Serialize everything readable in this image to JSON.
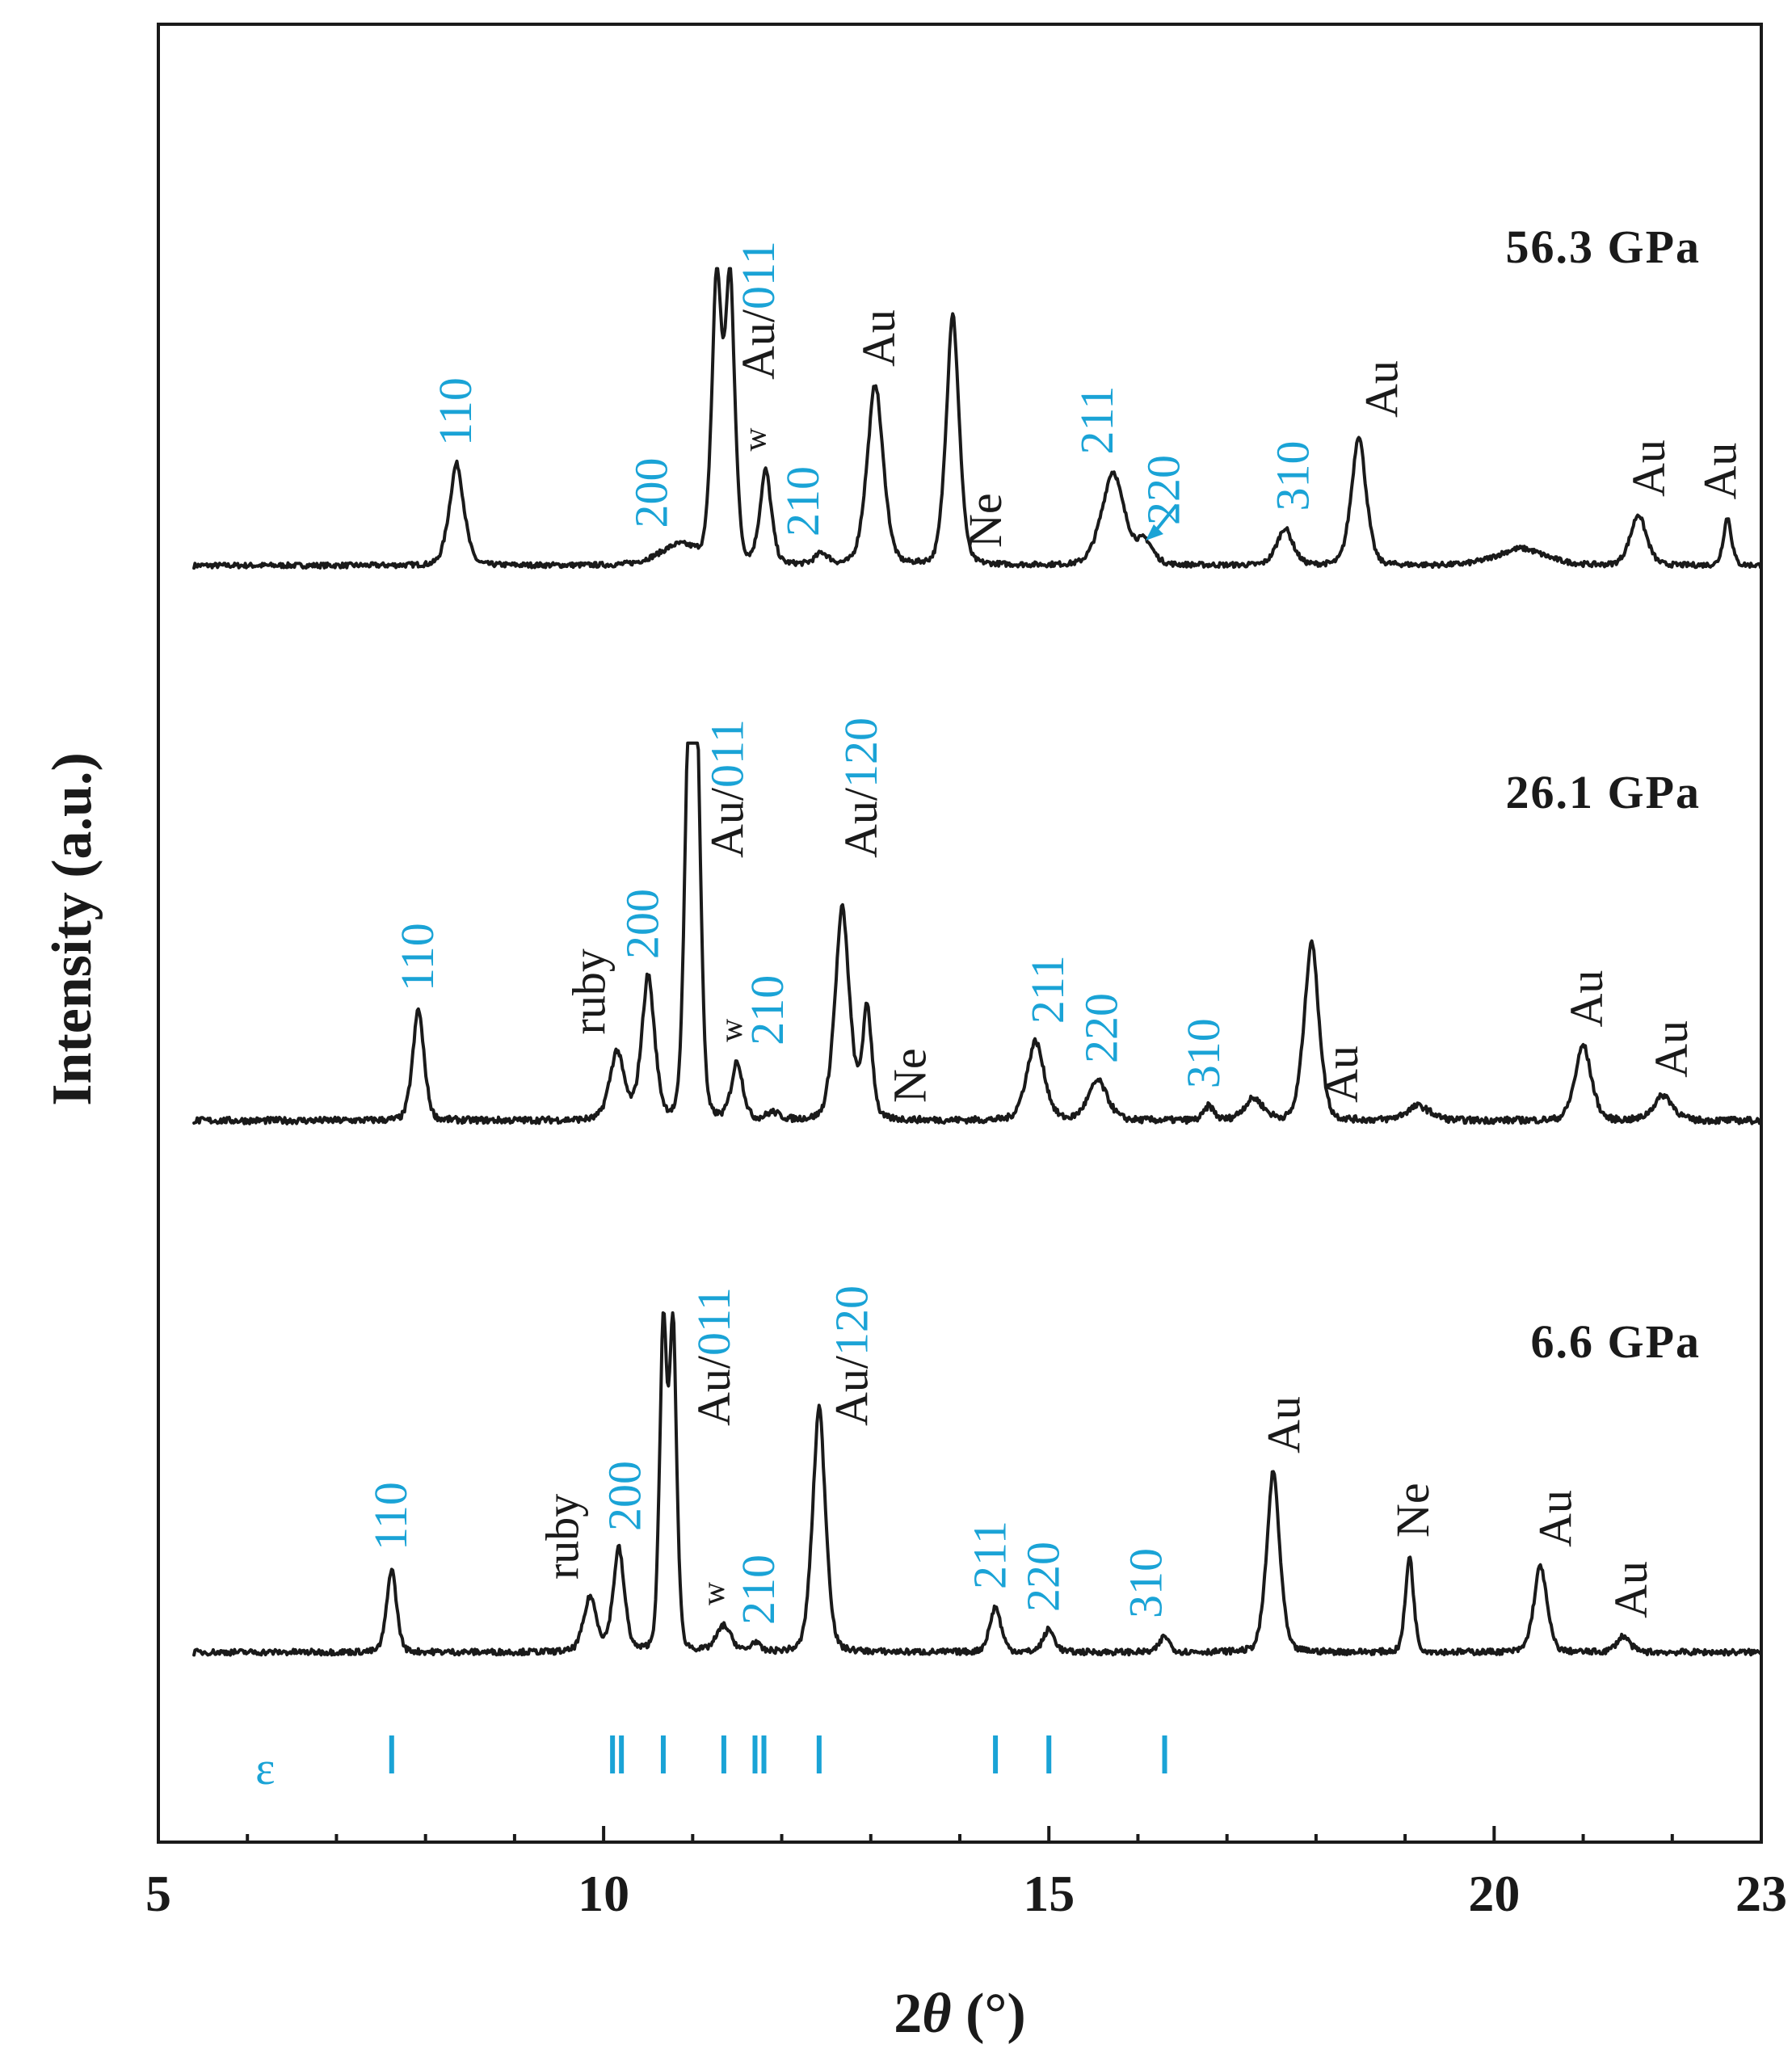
{
  "chart_data": {
    "type": "line",
    "xlabel": "2θ (°)",
    "xlabel_prefix": "2",
    "xlabel_theta": "θ",
    "xlabel_suffix": " (°)",
    "ylabel": "Intensity (a.u.)",
    "xlim": [
      5,
      23
    ],
    "x_ticks": [
      "5",
      "10",
      "15",
      "20",
      "23"
    ],
    "x_tick_values": [
      5,
      10,
      15,
      20,
      23
    ],
    "grid": false,
    "colors": {
      "trace": "#1a1a1a",
      "phase_index": "#1aa3d6",
      "impurity": "#1a1a1a"
    },
    "series": [
      {
        "name": "56.3 GPa",
        "level": 0,
        "peaks": [
          {
            "x": 8.35,
            "h": 0.36,
            "w": 0.09
          },
          {
            "x": 10.85,
            "h": 0.07,
            "w": 0.25
          },
          {
            "x": 11.27,
            "h": 1.0,
            "w": 0.06
          },
          {
            "x": 11.42,
            "h": 1.0,
            "w": 0.06
          },
          {
            "x": 11.82,
            "h": 0.33,
            "w": 0.07
          },
          {
            "x": 12.45,
            "h": 0.04,
            "w": 0.08
          },
          {
            "x": 13.05,
            "h": 0.64,
            "w": 0.1
          },
          {
            "x": 13.92,
            "h": 0.89,
            "w": 0.08
          },
          {
            "x": 15.72,
            "h": 0.33,
            "w": 0.14
          },
          {
            "x": 16.08,
            "h": 0.08,
            "w": 0.1
          },
          {
            "x": 17.65,
            "h": 0.13,
            "w": 0.1
          },
          {
            "x": 18.48,
            "h": 0.46,
            "w": 0.09
          },
          {
            "x": 20.3,
            "h": 0.06,
            "w": 0.3
          },
          {
            "x": 21.62,
            "h": 0.18,
            "w": 0.1
          },
          {
            "x": 22.62,
            "h": 0.17,
            "w": 0.05
          }
        ],
        "labels": [
          {
            "x": 8.35,
            "text": "110",
            "kind": "hkl"
          },
          {
            "x": 10.55,
            "text": "200",
            "kind": "hkl"
          },
          {
            "x": 11.75,
            "text": "Au/011",
            "kind": "mixed",
            "au": "Au/",
            "hkl": "011"
          },
          {
            "x": 11.82,
            "text": "w",
            "kind": "small"
          },
          {
            "x": 12.25,
            "text": "210",
            "kind": "hkl"
          },
          {
            "x": 13.1,
            "text": "Au",
            "kind": "impurity"
          },
          {
            "x": 14.3,
            "text": "Ne",
            "kind": "impurity"
          },
          {
            "x": 15.55,
            "text": "211",
            "kind": "hkl"
          },
          {
            "x": 16.3,
            "text": "220",
            "kind": "hkl"
          },
          {
            "x": 17.75,
            "text": "310",
            "kind": "hkl"
          },
          {
            "x": 18.75,
            "text": "Au",
            "kind": "impurity"
          },
          {
            "x": 21.75,
            "text": "Au",
            "kind": "impurity"
          },
          {
            "x": 22.55,
            "text": "Au",
            "kind": "impurity"
          }
        ]
      },
      {
        "name": "26.1 GPa",
        "level": 1,
        "peaks": [
          {
            "x": 7.92,
            "h": 0.31,
            "w": 0.07
          },
          {
            "x": 10.15,
            "h": 0.19,
            "w": 0.09
          },
          {
            "x": 10.5,
            "h": 0.4,
            "w": 0.08
          },
          {
            "x": 10.95,
            "h": 1.0,
            "w": 0.05
          },
          {
            "x": 11.05,
            "h": 1.0,
            "w": 0.05
          },
          {
            "x": 11.5,
            "h": 0.16,
            "w": 0.07
          },
          {
            "x": 11.9,
            "h": 0.02,
            "w": 0.08
          },
          {
            "x": 12.68,
            "h": 0.59,
            "w": 0.09
          },
          {
            "x": 12.96,
            "h": 0.31,
            "w": 0.06
          },
          {
            "x": 14.85,
            "h": 0.22,
            "w": 0.11
          },
          {
            "x": 15.55,
            "h": 0.11,
            "w": 0.12
          },
          {
            "x": 16.8,
            "h": 0.04,
            "w": 0.06
          },
          {
            "x": 17.3,
            "h": 0.06,
            "w": 0.12
          },
          {
            "x": 17.95,
            "h": 0.5,
            "w": 0.09
          },
          {
            "x": 19.15,
            "h": 0.04,
            "w": 0.15
          },
          {
            "x": 21.0,
            "h": 0.21,
            "w": 0.1
          },
          {
            "x": 21.9,
            "h": 0.07,
            "w": 0.12
          }
        ],
        "labels": [
          {
            "x": 7.92,
            "text": "110",
            "kind": "hkl"
          },
          {
            "x": 9.85,
            "text": "ruby",
            "kind": "impurity"
          },
          {
            "x": 10.45,
            "text": "200",
            "kind": "hkl"
          },
          {
            "x": 11.4,
            "text": "Au/011",
            "kind": "mixed",
            "au": "Au/",
            "hkl": "011"
          },
          {
            "x": 11.55,
            "text": "w",
            "kind": "small"
          },
          {
            "x": 11.85,
            "text": "210",
            "kind": "hkl"
          },
          {
            "x": 12.9,
            "text": "Au/120",
            "kind": "mixed",
            "au": "Au/",
            "hkl": "120"
          },
          {
            "x": 13.45,
            "text": "Ne",
            "kind": "impurity"
          },
          {
            "x": 15.0,
            "text": "211",
            "kind": "hkl"
          },
          {
            "x": 15.6,
            "text": "220",
            "kind": "hkl"
          },
          {
            "x": 16.75,
            "text": "310",
            "kind": "hkl"
          },
          {
            "x": 18.3,
            "text": "Au",
            "kind": "impurity"
          },
          {
            "x": 21.05,
            "text": "Au",
            "kind": "impurity"
          },
          {
            "x": 22.0,
            "text": "Au",
            "kind": "impurity"
          }
        ]
      },
      {
        "name": "6.6 GPa",
        "level": 2,
        "peaks": [
          {
            "x": 7.62,
            "h": 0.26,
            "w": 0.06
          },
          {
            "x": 9.85,
            "h": 0.17,
            "w": 0.08
          },
          {
            "x": 10.17,
            "h": 0.32,
            "w": 0.07
          },
          {
            "x": 10.67,
            "h": 1.0,
            "w": 0.045
          },
          {
            "x": 10.78,
            "h": 1.0,
            "w": 0.045
          },
          {
            "x": 11.35,
            "h": 0.08,
            "w": 0.09
          },
          {
            "x": 11.7,
            "h": 0.03,
            "w": 0.05
          },
          {
            "x": 12.42,
            "h": 0.76,
            "w": 0.08
          },
          {
            "x": 14.4,
            "h": 0.14,
            "w": 0.07
          },
          {
            "x": 15.0,
            "h": 0.07,
            "w": 0.07
          },
          {
            "x": 16.3,
            "h": 0.05,
            "w": 0.06
          },
          {
            "x": 17.52,
            "h": 0.56,
            "w": 0.08
          },
          {
            "x": 19.05,
            "h": 0.3,
            "w": 0.05
          },
          {
            "x": 20.52,
            "h": 0.27,
            "w": 0.08
          },
          {
            "x": 21.45,
            "h": 0.05,
            "w": 0.08
          }
        ],
        "labels": [
          {
            "x": 7.62,
            "text": "110",
            "kind": "hkl"
          },
          {
            "x": 9.55,
            "text": "ruby",
            "kind": "impurity"
          },
          {
            "x": 10.25,
            "text": "200",
            "kind": "hkl"
          },
          {
            "x": 11.25,
            "text": "Au/011",
            "kind": "mixed",
            "au": "Au/",
            "hkl": "011"
          },
          {
            "x": 11.35,
            "text": "w",
            "kind": "small"
          },
          {
            "x": 11.75,
            "text": "210",
            "kind": "hkl"
          },
          {
            "x": 12.8,
            "text": "Au/120",
            "kind": "mixed",
            "au": "Au/",
            "hkl": "120"
          },
          {
            "x": 14.35,
            "text": "211",
            "kind": "hkl"
          },
          {
            "x": 14.95,
            "text": "220",
            "kind": "hkl"
          },
          {
            "x": 16.1,
            "text": "310",
            "kind": "hkl"
          },
          {
            "x": 17.65,
            "text": "Au",
            "kind": "impurity"
          },
          {
            "x": 19.1,
            "text": "Ne",
            "kind": "impurity"
          },
          {
            "x": 20.7,
            "text": "Au",
            "kind": "impurity"
          },
          {
            "x": 21.55,
            "text": "Au",
            "kind": "impurity"
          }
        ]
      }
    ],
    "annotations": [
      {
        "text": "arrow to 220 shoulder",
        "series": "56.3 GPa",
        "x_from": 16.25,
        "x_to": 16.05
      }
    ],
    "reference": {
      "label": "ε",
      "positions": [
        7.62,
        10.1,
        10.2,
        10.67,
        11.35,
        11.7,
        11.8,
        12.42,
        14.4,
        15.0,
        16.3
      ]
    }
  }
}
